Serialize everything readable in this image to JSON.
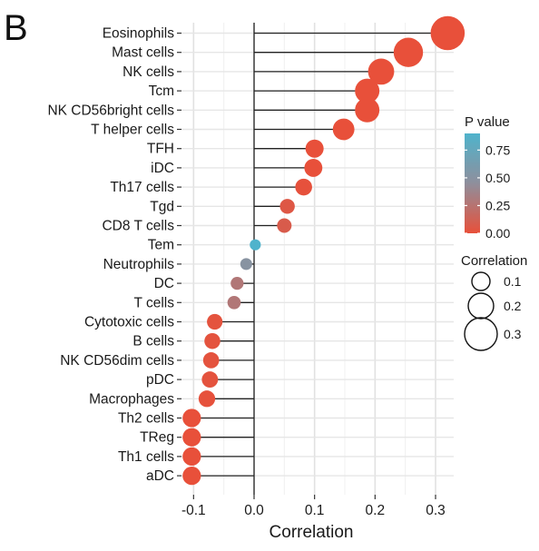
{
  "panel_label": "B",
  "chart_data": {
    "type": "scatter",
    "subtype": "lollipop",
    "title": "",
    "xlabel": "Correlation",
    "ylabel": "",
    "xlim": [
      -0.12,
      0.33
    ],
    "x_ticks": [
      -0.1,
      0.0,
      0.1,
      0.2,
      0.3
    ],
    "x_tick_labels": [
      "-0.1",
      "0.0",
      "0.1",
      "0.2",
      "0.3"
    ],
    "grid": true,
    "categories": [
      "Eosinophils",
      "Mast cells",
      "NK cells",
      "Tcm",
      "NK CD56bright cells",
      "T helper cells",
      "TFH",
      "iDC",
      "Th17 cells",
      "Tgd",
      "CD8 T cells",
      "Tem",
      "Neutrophils",
      "DC",
      "T cells",
      "Cytotoxic cells",
      "B cells",
      "NK CD56dim cells",
      "pDC",
      "Macrophages",
      "Th2 cells",
      "TReg",
      "Th1 cells",
      "aDC"
    ],
    "correlation": [
      0.32,
      0.255,
      0.21,
      0.187,
      0.187,
      0.148,
      0.1,
      0.098,
      0.082,
      0.055,
      0.05,
      0.002,
      -0.013,
      -0.028,
      -0.033,
      -0.065,
      -0.069,
      -0.071,
      -0.073,
      -0.078,
      -0.103,
      -0.103,
      -0.103,
      -0.103
    ],
    "p_value": [
      0.0,
      0.0,
      0.0,
      0.0,
      0.0,
      0.0,
      0.0,
      0.0,
      0.01,
      0.05,
      0.08,
      0.9,
      0.5,
      0.28,
      0.28,
      0.02,
      0.02,
      0.02,
      0.02,
      0.01,
      0.0,
      0.0,
      0.0,
      0.0
    ],
    "legend_position": "right",
    "legend_color": {
      "title": "P value",
      "ticks": [
        "0.75",
        "0.50",
        "0.25",
        "0.00"
      ],
      "tick_values": [
        0.75,
        0.5,
        0.25,
        0.0
      ],
      "range": [
        0.0,
        0.9
      ],
      "color_low": "#e8503a",
      "color_mid": "#8f8f9c",
      "color_high": "#4fb3cc"
    },
    "legend_size": {
      "title": "Correlation",
      "labels": [
        "0.1",
        "0.2",
        "0.3"
      ],
      "values": [
        0.1,
        0.2,
        0.3
      ]
    }
  }
}
